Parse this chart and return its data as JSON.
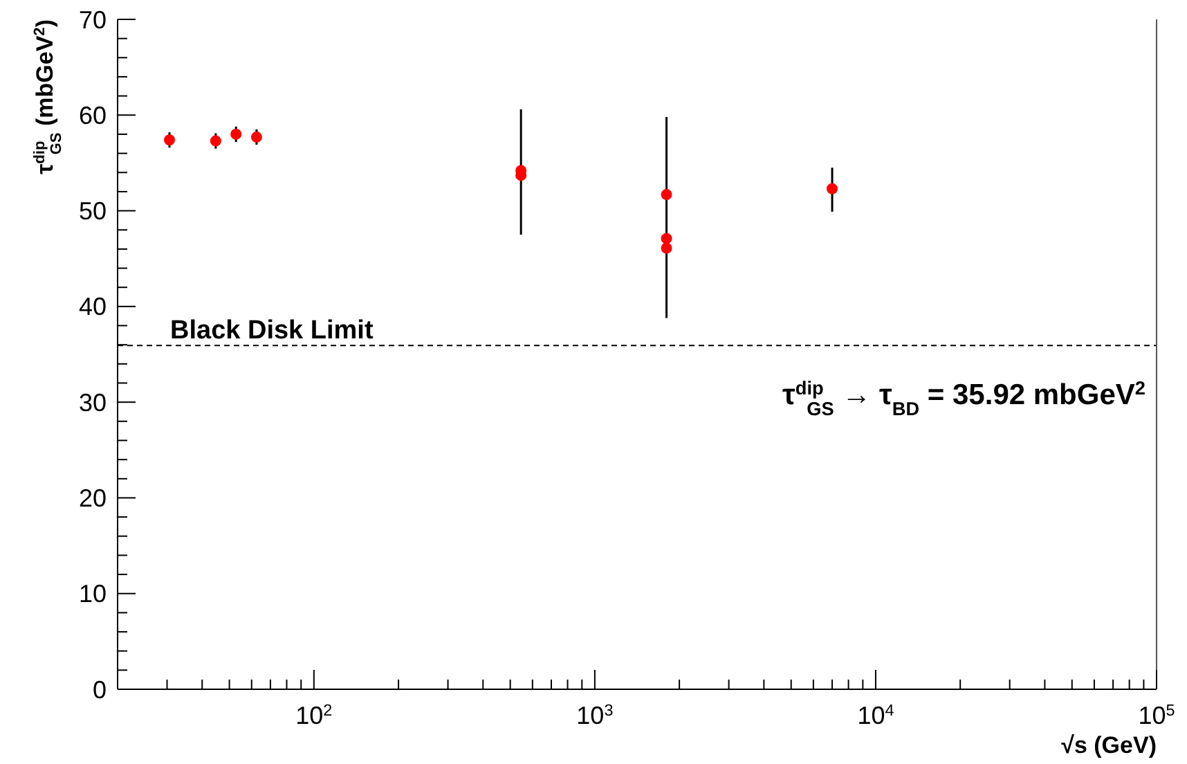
{
  "chart_data": {
    "type": "scatter",
    "xlabel": "√s (GeV)",
    "ylabel": "τ$^{dip}$$_{GS}$ (mbGeV$^{2}$)",
    "log": "x",
    "marker": "circle",
    "grid": false,
    "x": [
      30.6,
      44.7,
      52.8,
      62.5,
      546,
      546,
      1800,
      1800,
      1800,
      7000
    ],
    "series": [
      {
        "color": "#ff0000",
        "values": [
          57.4,
          57.3,
          58.0,
          57.7,
          54.2,
          53.7,
          51.7,
          47.1,
          46.1,
          52.3
        ],
        "errors": [
          0.8,
          0.8,
          0.8,
          0.8,
          [
            47.5,
            60.6
          ],
          null,
          null,
          [
            38.8,
            59.8
          ],
          null,
          [
            49.9,
            54.5
          ]
        ]
      }
    ],
    "xlim": [
      20,
      100000
    ],
    "xticks": [
      {
        "value": 20,
        "label": null
      },
      {
        "value": 30,
        "label": null
      },
      {
        "value": 40,
        "label": null
      },
      {
        "value": 50,
        "label": null
      },
      {
        "value": 60,
        "label": null
      },
      {
        "value": 70,
        "label": null
      },
      {
        "value": 80,
        "label": null
      },
      {
        "value": 90,
        "label": null
      },
      {
        "value": 100,
        "label": "10$^{2}$"
      },
      {
        "value": 200,
        "label": null
      },
      {
        "value": 300,
        "label": null
      },
      {
        "value": 400,
        "label": null
      },
      {
        "value": 500,
        "label": null
      },
      {
        "value": 600,
        "label": null
      },
      {
        "value": 700,
        "label": null
      },
      {
        "value": 800,
        "label": null
      },
      {
        "value": 900,
        "label": null
      },
      {
        "value": 1000,
        "label": "10$^{3}$"
      },
      {
        "value": 2000,
        "label": null
      },
      {
        "value": 3000,
        "label": null
      },
      {
        "value": 4000,
        "label": null
      },
      {
        "value": 5000,
        "label": null
      },
      {
        "value": 6000,
        "label": null
      },
      {
        "value": 7000,
        "label": null
      },
      {
        "value": 8000,
        "label": null
      },
      {
        "value": 9000,
        "label": null
      },
      {
        "value": 10000,
        "label": "10$^{4}$"
      },
      {
        "value": 20000,
        "label": null
      },
      {
        "value": 30000,
        "label": null
      },
      {
        "value": 40000,
        "label": null
      },
      {
        "value": 50000,
        "label": null
      },
      {
        "value": 60000,
        "label": null
      },
      {
        "value": 70000,
        "label": null
      },
      {
        "value": 80000,
        "label": null
      },
      {
        "value": 90000,
        "label": null
      },
      {
        "value": 100000,
        "label": "10$^{5}$"
      }
    ],
    "ylim": [
      0,
      70
    ],
    "yticks": [
      0,
      {
        "value": 2,
        "label": null
      },
      {
        "value": 4,
        "label": null
      },
      {
        "value": 6,
        "label": null
      },
      {
        "value": 8,
        "label": null
      },
      10,
      {
        "value": 12,
        "label": null
      },
      {
        "value": 14,
        "label": null
      },
      {
        "value": 16,
        "label": null
      },
      {
        "value": 18,
        "label": null
      },
      20,
      {
        "value": 22,
        "label": null
      },
      {
        "value": 24,
        "label": null
      },
      {
        "value": 26,
        "label": null
      },
      {
        "value": 28,
        "label": null
      },
      30,
      {
        "value": 32,
        "label": null
      },
      {
        "value": 34,
        "label": null
      },
      {
        "value": 36,
        "label": null
      },
      {
        "value": 38,
        "label": null
      },
      40,
      {
        "value": 42,
        "label": null
      },
      {
        "value": 44,
        "label": null
      },
      {
        "value": 46,
        "label": null
      },
      {
        "value": 48,
        "label": null
      },
      50,
      {
        "value": 52,
        "label": null
      },
      {
        "value": 54,
        "label": null
      },
      {
        "value": 56,
        "label": null
      },
      {
        "value": 58,
        "label": null
      },
      60,
      {
        "value": 62,
        "label": null
      },
      {
        "value": 64,
        "label": null
      },
      {
        "value": 66,
        "label": null
      },
      {
        "value": 68,
        "label": null
      },
      70
    ],
    "ref_lines": [
      {
        "axis": "y",
        "value": 35.92,
        "label": "Black Disk Limit",
        "line_style": "dashed",
        "color": "#000000"
      }
    ],
    "annotations": [
      "τ$^{dip}$$_{GS}$ → τ$_{BD}$ = 35.92 mbGeV$^{2}$"
    ]
  }
}
